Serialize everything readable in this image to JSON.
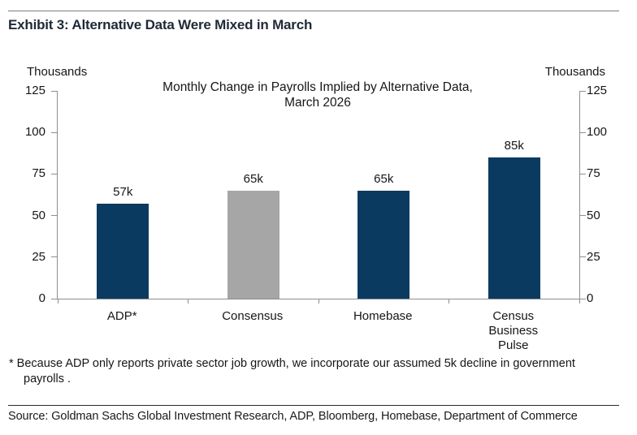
{
  "header": {
    "title": "Exhibit 3: Alternative Data Were Mixed in March"
  },
  "chart_data": {
    "type": "bar",
    "title": "Monthly Change in Payrolls Implied by Alternative Data,\nMarch 2026",
    "unit_label_left": "Thousands",
    "unit_label_right": "Thousands",
    "categories": [
      "ADP*",
      "Consensus",
      "Homebase",
      "Census\nBusiness\nPulse"
    ],
    "values": [
      57,
      65,
      65,
      85
    ],
    "value_labels": [
      "57k",
      "65k",
      "65k",
      "85k"
    ],
    "bar_colors": [
      "#0a3a60",
      "#a6a6a6",
      "#0a3a60",
      "#0a3a60"
    ],
    "ylim": [
      0,
      125
    ],
    "yticks": [
      0,
      25,
      50,
      75,
      100,
      125
    ],
    "y_axis_sides": [
      "left",
      "right"
    ],
    "grid": false,
    "legend": "none"
  },
  "footnote": "* Because ADP only reports private sector job growth, we incorporate our assumed 5k decline in government\npayrolls .",
  "source": "Source: Goldman Sachs Global Investment Research, ADP, Bloomberg, Homebase, Department of Commerce",
  "colors": {
    "navy": "#0a3a60",
    "gray": "#a6a6a6",
    "axis_line": "#8e8e8e",
    "exhibit_title_text": "#1f2a37"
  }
}
